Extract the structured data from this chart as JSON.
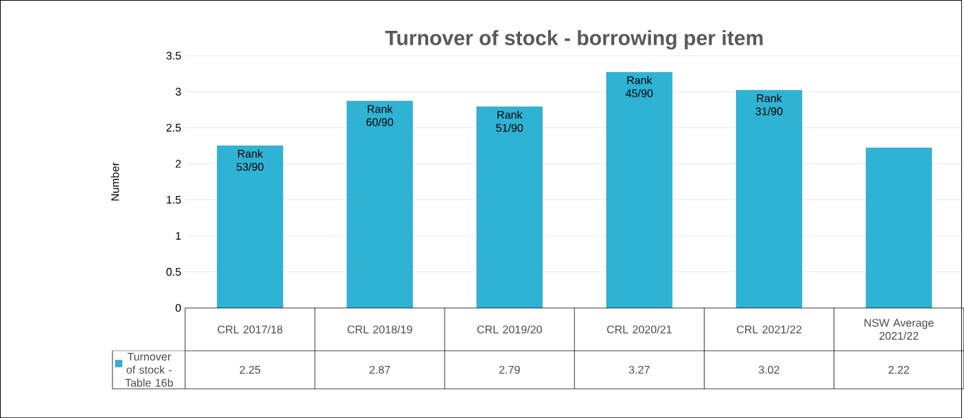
{
  "chart_data": {
    "type": "bar",
    "title": "Turnover of stock - borrowing per item",
    "ylabel": "Number",
    "categories": [
      "CRL 2017/18",
      "CRL 2018/19",
      "CRL 2019/20",
      "CRL 2020/21",
      "CRL 2021/22",
      "NSW Average 2021/22"
    ],
    "series": [
      {
        "name": "Turnover of stock - Table 16b",
        "color": "#2eb3d4",
        "values": [
          2.25,
          2.87,
          2.79,
          3.27,
          3.02,
          2.22
        ]
      }
    ],
    "ylim": [
      0,
      3.5
    ],
    "yticks": [
      0,
      0.5,
      1,
      1.5,
      2,
      2.5,
      3,
      3.5
    ],
    "grid": "y",
    "legend": "bottom",
    "data_labels": true,
    "annotations": [
      "Rank 53/90",
      "Rank 60/90",
      "Rank 51/90",
      "Rank 45/90",
      "Rank 31/90"
    ]
  }
}
